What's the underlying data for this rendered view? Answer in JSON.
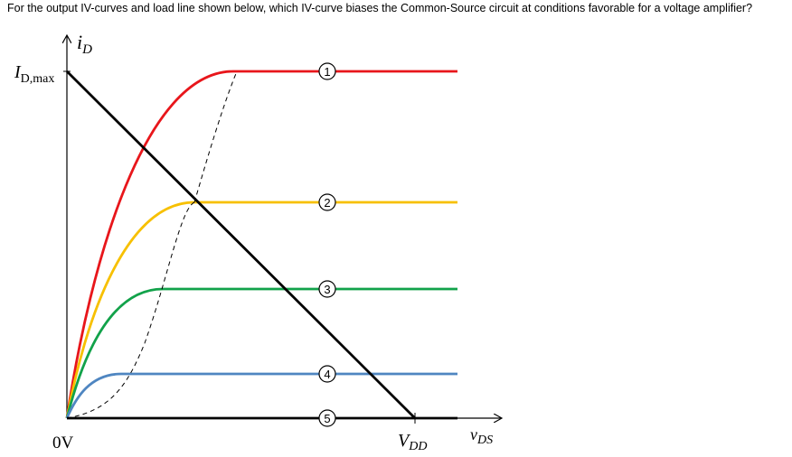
{
  "question": "For the output IV-curves and load line shown below, which IV-curve biases the Common-Source circuit at conditions favorable for a voltage amplifier?",
  "axes": {
    "y_label_main": "i",
    "y_label_sub": "D",
    "x_label_main": "v",
    "x_label_sub": "DS",
    "id_max_main": "I",
    "id_max_sub": "D,max",
    "origin_label": "0V",
    "vdd_main": "V",
    "vdd_sub": "DD"
  },
  "curves": [
    {
      "label": "1",
      "color": "#e8161b"
    },
    {
      "label": "2",
      "color": "#f7c000"
    },
    {
      "label": "3",
      "color": "#12a24a"
    },
    {
      "label": "4",
      "color": "#4f86c1"
    },
    {
      "label": "5",
      "color": "#000000"
    }
  ],
  "colors": {
    "load_line": "#000000",
    "boundary": "#000000"
  }
}
